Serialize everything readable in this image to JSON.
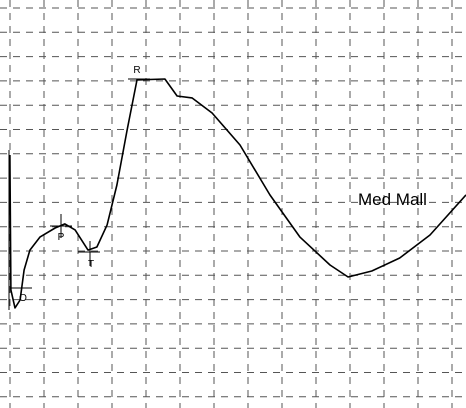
{
  "chart_data": {
    "type": "line",
    "x": [
      0.29,
      0.32,
      0.44,
      0.59,
      0.71,
      0.88,
      1.18,
      1.62,
      1.91,
      2.21,
      2.59,
      2.85,
      3.15,
      3.44,
      3.74,
      4.03,
      4.85,
      5.21,
      5.65,
      6.24,
      7.06,
      7.94,
      8.82,
      9.71,
      10.24,
      10.94,
      11.76,
      12.65,
      13.71
    ],
    "values": [
      10.54,
      4.92,
      4.17,
      4.5,
      5.75,
      6.58,
      7.13,
      7.5,
      7.67,
      7.42,
      6.58,
      6.71,
      7.63,
      9.29,
      11.58,
      13.67,
      13.71,
      13.0,
      12.92,
      12.29,
      10.96,
      8.88,
      7.13,
      5.96,
      5.46,
      5.71,
      6.25,
      7.21,
      8.88
    ],
    "color": "#000000",
    "xlim": [
      0,
      13.71
    ],
    "ylim": [
      0,
      17
    ],
    "grid": true,
    "annotations": [
      "R",
      "P",
      "T",
      "O",
      "Med Mall"
    ]
  }
}
